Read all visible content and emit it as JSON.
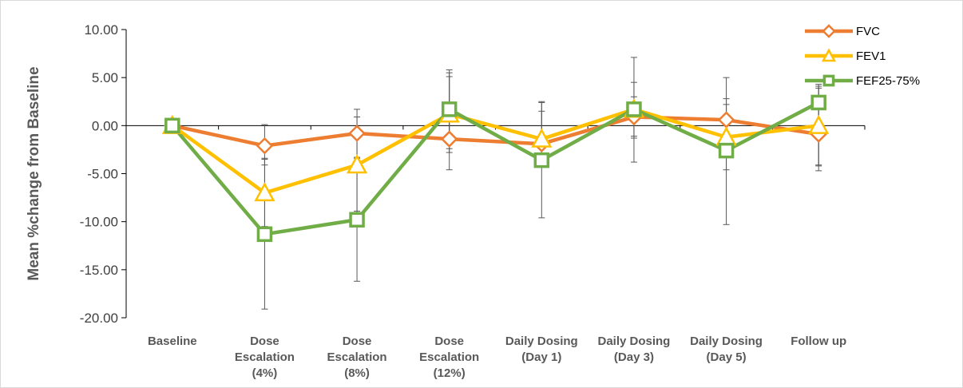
{
  "chart_data": {
    "type": "line",
    "ylabel": "Mean %change from Baseline",
    "ylim": [
      -20,
      10
    ],
    "yticks": [
      10,
      5,
      0,
      -5,
      -10,
      -15,
      -20
    ],
    "ytick_labels": [
      "10.00",
      "5.00",
      "0.00",
      "-5.00",
      "-10.00",
      "-15.00",
      "-20.00"
    ],
    "categories": [
      [
        "Baseline"
      ],
      [
        "Dose",
        "Escalation",
        "(4%)"
      ],
      [
        "Dose",
        "Escalation",
        "(8%)"
      ],
      [
        "Dose",
        "Escalation",
        "(12%)"
      ],
      [
        "Daily Dosing",
        "(Day 1)"
      ],
      [
        "Daily Dosing",
        "(Day 3)"
      ],
      [
        "Daily Dosing",
        "(Day 5)"
      ],
      [
        "Follow up"
      ]
    ],
    "legend_position": "top-right",
    "grid": false,
    "series": [
      {
        "name": "FVC",
        "color": "#ED7D31",
        "marker": "diamond",
        "values": [
          0,
          -2.1,
          -0.8,
          -1.4,
          -1.9,
          0.9,
          0.6,
          -0.9
        ],
        "err_high": [
          0.7,
          0.1,
          1.7,
          5.5,
          2.4,
          3.0,
          2.8,
          4.1
        ],
        "err_low": [
          -0.5,
          -4.1,
          -3.3,
          -4.6,
          -3.3,
          -1.1,
          -1.7,
          -4.7
        ]
      },
      {
        "name": "FEV1",
        "color": "#FFC000",
        "marker": "triangle",
        "values": [
          0,
          -7.0,
          -4.1,
          1.2,
          -1.4,
          1.7,
          -1.2,
          0
        ],
        "err_high": [
          0.3,
          -3.4,
          0.9,
          5.1,
          1.5,
          4.5,
          2.2,
          3.9
        ],
        "err_low": [
          -0.3,
          -10.5,
          -8.9,
          -2.8,
          -4.1,
          -1.3,
          -4.6,
          -4.1
        ]
      },
      {
        "name": "FEF25-75%",
        "color": "#70AD47",
        "marker": "square",
        "values": [
          0,
          -11.3,
          -9.8,
          1.7,
          -3.6,
          1.7,
          -2.6,
          2.4
        ],
        "err_high": [
          0.3,
          -3.5,
          -3.4,
          5.8,
          2.5,
          7.1,
          5.0,
          4.3
        ],
        "err_low": [
          -0.3,
          -19.1,
          -16.2,
          -2.4,
          -9.6,
          -3.8,
          -10.3,
          -4.2
        ]
      }
    ]
  }
}
